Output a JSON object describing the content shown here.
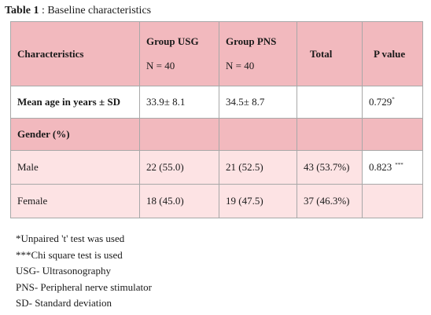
{
  "caption": {
    "label": "Table 1",
    "text": " : Baseline characteristics"
  },
  "table": {
    "headers": {
      "characteristics": "Characteristics",
      "group_usg": "Group USG",
      "group_usg_n": "N = 40",
      "group_pns": "Group PNS",
      "group_pns_n": "N = 40",
      "total": "Total",
      "p_value": "P value"
    },
    "rows": {
      "age": {
        "label": "Mean age in years ± SD",
        "usg": "33.9± 8.1",
        "pns": "34.5± 8.7",
        "total": "",
        "p": "0.729",
        "p_mark": "*"
      },
      "gender": {
        "label": "Gender (%)"
      },
      "male": {
        "label": "Male",
        "usg": "22 (55.0)",
        "pns": "21 (52.5)",
        "total": "43 (53.7%)",
        "p": "0.823",
        "p_mark": "***"
      },
      "female": {
        "label": "Female",
        "usg": "18 (45.0)",
        "pns": "19 (47.5)",
        "total": "37 (46.3%)",
        "p": ""
      }
    }
  },
  "notes": [
    "*Unpaired 't' test was used",
    "***Chi square test is used",
    "USG- Ultrasonography",
    "PNS- Peripheral nerve stimulator",
    "SD- Standard deviation"
  ]
}
